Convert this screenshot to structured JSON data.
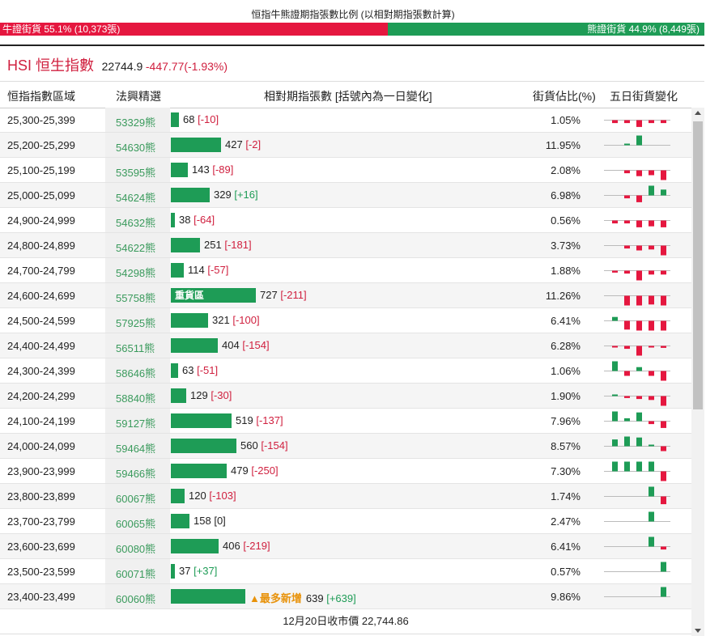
{
  "ratio": {
    "title": "恒指牛熊證期指張數比例 (以相對期指張數計算)",
    "bull_label": "牛證街貨 55.1% (10,373張)",
    "bear_label": "熊證街貨 44.9% (8,449張)",
    "bull_share": 0.551
  },
  "index": {
    "name": "HSI 恒生指數",
    "value": "22744.9",
    "change": "-447.77(-1.93%)"
  },
  "table": {
    "headers": {
      "range": "恒指指數區域",
      "pick": "法興精選",
      "contracts": "相對期指張數 [括號內為一日變化]",
      "share": "街貨佔比(%)",
      "trend": "五日街貨變化"
    },
    "max_contracts": 727,
    "rows": [
      {
        "range": "25,300-25,399",
        "code": "53329熊",
        "contracts": 68,
        "count": "68",
        "delta": "[-10]",
        "share": "1.05%",
        "trend": [
          -0.3,
          -0.3,
          -0.7,
          -0.3,
          -0.3
        ]
      },
      {
        "range": "25,200-25,299",
        "code": "54630熊",
        "contracts": 427,
        "count": "427",
        "delta": "[-2]",
        "share": "11.95%",
        "trend": [
          0,
          0.1,
          1,
          0,
          0
        ]
      },
      {
        "range": "25,100-25,199",
        "code": "53595熊",
        "contracts": 143,
        "count": "143",
        "delta": "[-89]",
        "share": "2.08%",
        "trend": [
          0,
          -0.3,
          -0.6,
          -0.5,
          -1
        ]
      },
      {
        "range": "25,000-25,099",
        "code": "54624熊",
        "contracts": 329,
        "count": "329",
        "delta": "[+16]",
        "share": "6.98%",
        "trend": [
          0,
          -0.3,
          -0.7,
          1,
          0.6
        ]
      },
      {
        "range": "24,900-24,999",
        "code": "54632熊",
        "contracts": 38,
        "count": "38",
        "delta": "[-64]",
        "share": "0.56%",
        "trend": [
          -0.3,
          -0.3,
          -0.7,
          -0.6,
          -0.7
        ]
      },
      {
        "range": "24,800-24,899",
        "code": "54622熊",
        "contracts": 251,
        "count": "251",
        "delta": "[-181]",
        "share": "3.73%",
        "trend": [
          0,
          -0.3,
          -0.5,
          -0.4,
          -1
        ]
      },
      {
        "range": "24,700-24,799",
        "code": "54298熊",
        "contracts": 114,
        "count": "114",
        "delta": "[-57]",
        "share": "1.88%",
        "trend": [
          -0.2,
          -0.3,
          -1,
          -0.4,
          -0.4
        ]
      },
      {
        "range": "24,600-24,699",
        "code": "55758熊",
        "contracts": 727,
        "count": "727",
        "delta": "[-211]",
        "share": "11.26%",
        "tag": "重貨區",
        "trend": [
          0,
          -1,
          -1,
          -0.9,
          -1
        ]
      },
      {
        "range": "24,500-24,599",
        "code": "57925熊",
        "contracts": 321,
        "count": "321",
        "delta": "[-100]",
        "share": "6.41%",
        "trend": [
          0.4,
          -0.9,
          -1,
          -1,
          -1
        ]
      },
      {
        "range": "24,400-24,499",
        "code": "56511熊",
        "contracts": 404,
        "count": "404",
        "delta": "[-154]",
        "share": "6.28%",
        "trend": [
          -0.1,
          -0.3,
          -1,
          -0.1,
          -0.2
        ]
      },
      {
        "range": "24,300-24,399",
        "code": "58646熊",
        "contracts": 63,
        "count": "63",
        "delta": "[-51]",
        "share": "1.06%",
        "trend": [
          1,
          -0.5,
          0.4,
          -0.5,
          -1
        ]
      },
      {
        "range": "24,200-24,299",
        "code": "58840熊",
        "contracts": 129,
        "count": "129",
        "delta": "[-30]",
        "share": "1.90%",
        "trend": [
          0.1,
          -0.2,
          -0.3,
          -0.4,
          -1
        ]
      },
      {
        "range": "24,100-24,199",
        "code": "59127熊",
        "contracts": 519,
        "count": "519",
        "delta": "[-137]",
        "share": "7.96%",
        "trend": [
          1,
          0.3,
          0.9,
          -0.3,
          -0.7
        ]
      },
      {
        "range": "24,000-24,099",
        "code": "59464熊",
        "contracts": 560,
        "count": "560",
        "delta": "[-154]",
        "share": "8.57%",
        "trend": [
          0.7,
          1,
          0.9,
          0.1,
          -0.5
        ]
      },
      {
        "range": "23,900-23,999",
        "code": "59466熊",
        "contracts": 479,
        "count": "479",
        "delta": "[-250]",
        "share": "7.30%",
        "trend": [
          1,
          1,
          1,
          1,
          -1
        ]
      },
      {
        "range": "23,800-23,899",
        "code": "60067熊",
        "contracts": 120,
        "count": "120",
        "delta": "[-103]",
        "share": "1.74%",
        "trend": [
          0,
          0,
          0,
          1,
          -0.8
        ]
      },
      {
        "range": "23,700-23,799",
        "code": "60065熊",
        "contracts": 158,
        "count": "158",
        "delta": "[0]",
        "share": "2.47%",
        "trend": [
          0,
          0,
          0,
          1,
          0
        ]
      },
      {
        "range": "23,600-23,699",
        "code": "60080熊",
        "contracts": 406,
        "count": "406",
        "delta": "[-219]",
        "share": "6.41%",
        "trend": [
          0,
          0,
          0,
          1,
          -0.3
        ]
      },
      {
        "range": "23,500-23,599",
        "code": "60071熊",
        "contracts": 37,
        "count": "37",
        "delta": "[+37]",
        "share": "0.57%",
        "trend": [
          0,
          0,
          0,
          0,
          1
        ]
      },
      {
        "range": "23,400-23,499",
        "code": "60060熊",
        "contracts": 639,
        "count": "639",
        "delta": "[+639]",
        "share": "9.86%",
        "tag": "▲最多新增",
        "trend": [
          0,
          0,
          0,
          0,
          1
        ]
      }
    ],
    "footer": "12月20日收市價 22,744.86"
  },
  "colors": {
    "bull": "#e5173f",
    "bear": "#1e9c56",
    "code_text": "#3a9a5c",
    "tag": "#e8920a"
  }
}
